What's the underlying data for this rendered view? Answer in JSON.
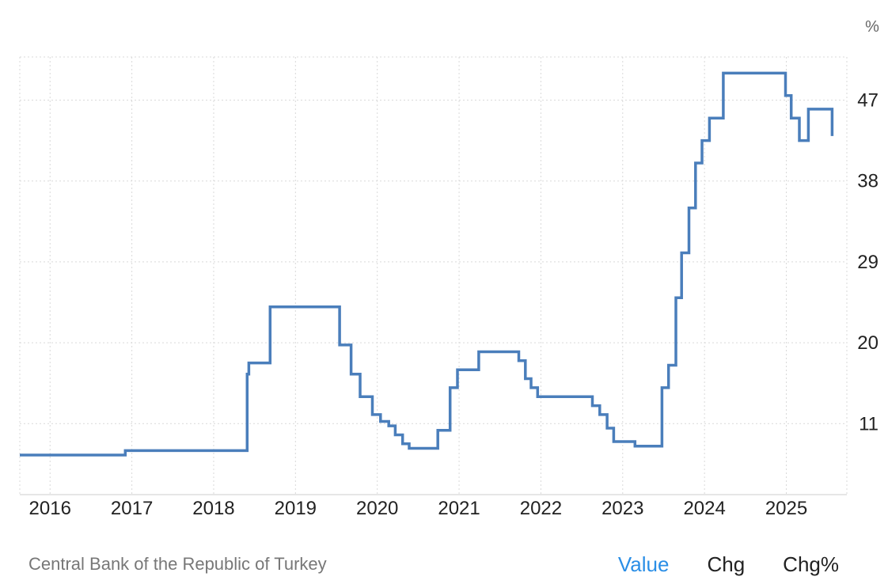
{
  "unit_label": "%",
  "footer": {
    "source": "Central Bank of the Republic of Turkey",
    "tabs": [
      {
        "label": "Value",
        "active": true
      },
      {
        "label": "Chg",
        "active": false
      },
      {
        "label": "Chg%",
        "active": false
      }
    ]
  },
  "colors": {
    "line": "#4a7ebb",
    "active_tab": "#2a8ee6"
  },
  "chart_data": {
    "type": "line",
    "step": true,
    "grid": true,
    "y_axis_side": "right",
    "xlim": [
      2015.63,
      2025.74
    ],
    "ylim": [
      3.1,
      51.8
    ],
    "x_ticks": [
      2016,
      2017,
      2018,
      2019,
      2020,
      2021,
      2022,
      2023,
      2024,
      2025
    ],
    "y_ticks": [
      11,
      20,
      29,
      38,
      47
    ],
    "series": [
      {
        "points": [
          [
            2015.63,
            7.5
          ],
          [
            2016.92,
            7.5
          ],
          [
            2016.92,
            8.0
          ],
          [
            2018.41,
            8.0
          ],
          [
            2018.41,
            16.5
          ],
          [
            2018.43,
            16.5
          ],
          [
            2018.43,
            17.75
          ],
          [
            2018.69,
            17.75
          ],
          [
            2018.69,
            24.0
          ],
          [
            2019.54,
            24.0
          ],
          [
            2019.54,
            19.75
          ],
          [
            2019.68,
            19.75
          ],
          [
            2019.68,
            16.5
          ],
          [
            2019.79,
            16.5
          ],
          [
            2019.79,
            14.0
          ],
          [
            2019.94,
            14.0
          ],
          [
            2019.94,
            12.0
          ],
          [
            2020.04,
            12.0
          ],
          [
            2020.04,
            11.25
          ],
          [
            2020.14,
            11.25
          ],
          [
            2020.14,
            10.75
          ],
          [
            2020.22,
            10.75
          ],
          [
            2020.22,
            9.75
          ],
          [
            2020.31,
            9.75
          ],
          [
            2020.31,
            8.75
          ],
          [
            2020.39,
            8.75
          ],
          [
            2020.39,
            8.25
          ],
          [
            2020.74,
            8.25
          ],
          [
            2020.74,
            10.25
          ],
          [
            2020.89,
            10.25
          ],
          [
            2020.89,
            15.0
          ],
          [
            2020.98,
            15.0
          ],
          [
            2020.98,
            17.0
          ],
          [
            2021.24,
            17.0
          ],
          [
            2021.24,
            19.0
          ],
          [
            2021.73,
            19.0
          ],
          [
            2021.73,
            18.0
          ],
          [
            2021.81,
            18.0
          ],
          [
            2021.81,
            16.0
          ],
          [
            2021.88,
            16.0
          ],
          [
            2021.88,
            15.0
          ],
          [
            2021.96,
            15.0
          ],
          [
            2021.96,
            14.0
          ],
          [
            2022.63,
            14.0
          ],
          [
            2022.63,
            13.0
          ],
          [
            2022.72,
            13.0
          ],
          [
            2022.72,
            12.0
          ],
          [
            2022.81,
            12.0
          ],
          [
            2022.81,
            10.5
          ],
          [
            2022.89,
            10.5
          ],
          [
            2022.89,
            9.0
          ],
          [
            2023.15,
            9.0
          ],
          [
            2023.15,
            8.5
          ],
          [
            2023.48,
            8.5
          ],
          [
            2023.48,
            15.0
          ],
          [
            2023.56,
            15.0
          ],
          [
            2023.56,
            17.5
          ],
          [
            2023.65,
            17.5
          ],
          [
            2023.65,
            25.0
          ],
          [
            2023.72,
            25.0
          ],
          [
            2023.72,
            30.0
          ],
          [
            2023.81,
            30.0
          ],
          [
            2023.81,
            35.0
          ],
          [
            2023.89,
            35.0
          ],
          [
            2023.89,
            40.0
          ],
          [
            2023.97,
            40.0
          ],
          [
            2023.97,
            42.5
          ],
          [
            2024.06,
            42.5
          ],
          [
            2024.06,
            45.0
          ],
          [
            2024.23,
            45.0
          ],
          [
            2024.23,
            50.0
          ],
          [
            2024.99,
            50.0
          ],
          [
            2024.99,
            47.5
          ],
          [
            2025.06,
            47.5
          ],
          [
            2025.06,
            45.0
          ],
          [
            2025.16,
            45.0
          ],
          [
            2025.16,
            42.5
          ],
          [
            2025.27,
            42.5
          ],
          [
            2025.27,
            46.0
          ],
          [
            2025.56,
            46.0
          ],
          [
            2025.56,
            43.0
          ]
        ]
      }
    ]
  }
}
